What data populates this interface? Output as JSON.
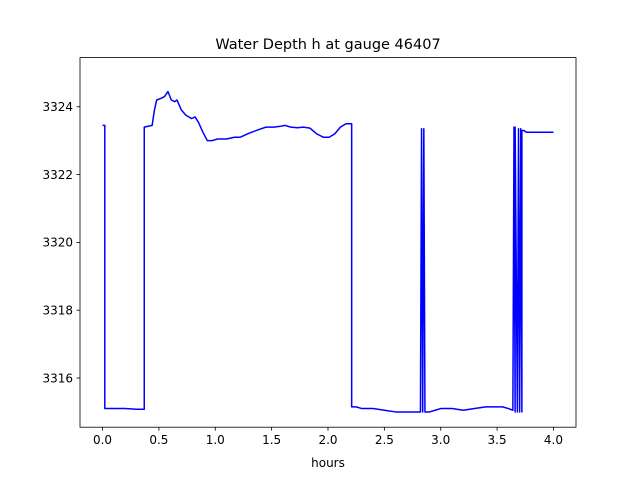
{
  "chart_data": {
    "type": "line",
    "title": "Water Depth h at gauge 46407",
    "xlabel": "hours",
    "ylabel": "",
    "xlim": [
      -0.2,
      4.2
    ],
    "ylim": [
      3314.55,
      3325.45
    ],
    "xticks": [
      0.0,
      0.5,
      1.0,
      1.5,
      2.0,
      2.5,
      3.0,
      3.5,
      4.0
    ],
    "xtick_labels": [
      "0.0",
      "0.5",
      "1.0",
      "1.5",
      "2.0",
      "2.5",
      "3.0",
      "3.5",
      "4.0"
    ],
    "yticks": [
      3316,
      3318,
      3320,
      3322,
      3324
    ],
    "ytick_labels": [
      "3316",
      "3318",
      "3320",
      "3322",
      "3324"
    ],
    "grid": false,
    "legend": "none",
    "series": [
      {
        "color": "#0000ff",
        "x": [
          0.0,
          0.02,
          0.02,
          0.1,
          0.2,
          0.3,
          0.37,
          0.37,
          0.44,
          0.46,
          0.48,
          0.52,
          0.55,
          0.58,
          0.61,
          0.64,
          0.66,
          0.7,
          0.74,
          0.79,
          0.82,
          0.85,
          0.89,
          0.93,
          0.97,
          1.02,
          1.1,
          1.17,
          1.22,
          1.3,
          1.38,
          1.45,
          1.52,
          1.57,
          1.62,
          1.67,
          1.73,
          1.78,
          1.84,
          1.9,
          1.96,
          2.01,
          2.06,
          2.11,
          2.16,
          2.21,
          2.21,
          2.25,
          2.3,
          2.4,
          2.5,
          2.6,
          2.7,
          2.8,
          2.82,
          2.83,
          2.84,
          2.85,
          2.86,
          2.86,
          2.9,
          2.95,
          3.0,
          3.1,
          3.2,
          3.3,
          3.4,
          3.5,
          3.55,
          3.6,
          3.64,
          3.65,
          3.66,
          3.66,
          3.68,
          3.69,
          3.7,
          3.71,
          3.72,
          3.72,
          3.74,
          3.75,
          3.76,
          3.8,
          3.9,
          4.0
        ],
        "y": [
          3323.45,
          3323.45,
          3315.1,
          3315.1,
          3315.1,
          3315.08,
          3315.08,
          3323.4,
          3323.45,
          3323.9,
          3324.2,
          3324.25,
          3324.3,
          3324.45,
          3324.2,
          3324.15,
          3324.2,
          3323.9,
          3323.75,
          3323.65,
          3323.7,
          3323.55,
          3323.25,
          3323.0,
          3323.0,
          3323.05,
          3323.05,
          3323.1,
          3323.1,
          3323.22,
          3323.32,
          3323.4,
          3323.4,
          3323.42,
          3323.45,
          3323.4,
          3323.38,
          3323.4,
          3323.37,
          3323.2,
          3323.1,
          3323.1,
          3323.2,
          3323.4,
          3323.5,
          3323.5,
          3315.15,
          3315.15,
          3315.1,
          3315.1,
          3315.05,
          3315.0,
          3315.0,
          3315.0,
          3315.0,
          3323.35,
          3315.0,
          3323.35,
          3315.0,
          3315.0,
          3315.0,
          3315.05,
          3315.1,
          3315.1,
          3315.05,
          3315.1,
          3315.15,
          3315.15,
          3315.15,
          3315.1,
          3315.05,
          3323.4,
          3315.0,
          3323.4,
          3315.0,
          3323.35,
          3315.0,
          3323.35,
          3315.0,
          3323.3,
          3323.3,
          3323.27,
          3323.25,
          3323.25,
          3323.25,
          3323.25
        ]
      }
    ]
  }
}
